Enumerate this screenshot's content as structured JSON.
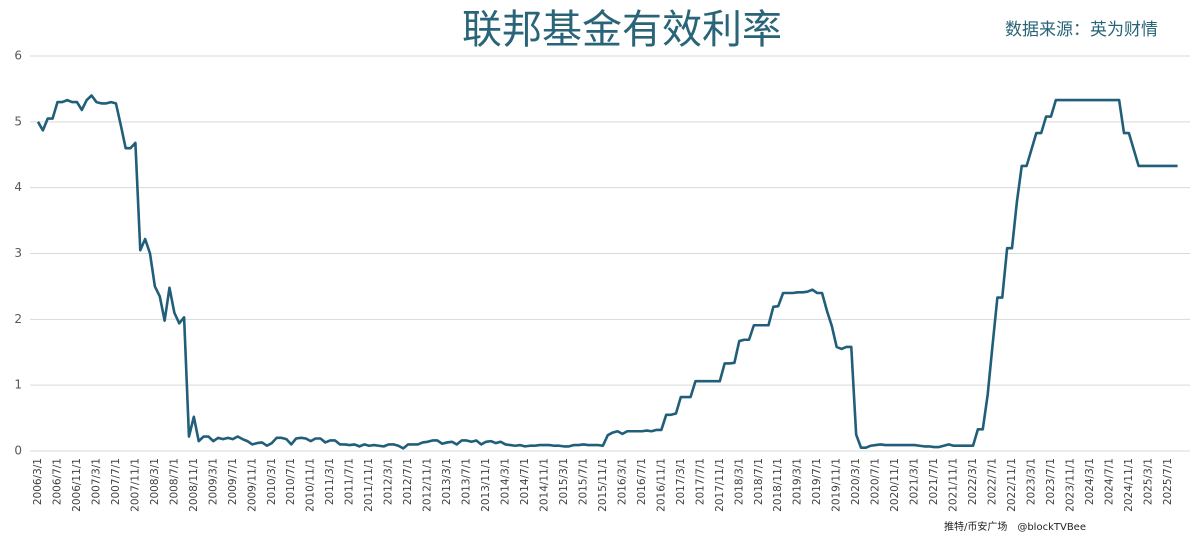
{
  "chart_data": {
    "type": "line",
    "title": "联邦基金有效利率",
    "subtitle": "数据来源：英为财情",
    "watermark": "推特/币安广场　@blockTVBee",
    "color": "#215e79",
    "grid": true,
    "ylim": [
      0,
      6
    ],
    "yticks": [
      0,
      1,
      2,
      3,
      4,
      5,
      6
    ],
    "categories": [
      "2006/3/1",
      null,
      null,
      null,
      "2006/7/1",
      null,
      null,
      null,
      "2006/11/1",
      null,
      null,
      null,
      "2007/3/1",
      null,
      null,
      null,
      "2007/7/1",
      null,
      null,
      null,
      "2007/11/1",
      null,
      null,
      null,
      "2008/3/1",
      null,
      null,
      null,
      "2008/7/1",
      null,
      null,
      null,
      "2008/11/1",
      null,
      null,
      null,
      "2009/3/1",
      null,
      null,
      null,
      "2009/7/1",
      null,
      null,
      null,
      "2009/11/1",
      null,
      null,
      null,
      "2010/3/1",
      null,
      null,
      null,
      "2010/7/1",
      null,
      null,
      null,
      "2010/11/1",
      null,
      null,
      null,
      "2011/3/1",
      null,
      null,
      null,
      "2011/7/1",
      null,
      null,
      null,
      "2011/11/1",
      null,
      null,
      null,
      "2012/3/1",
      null,
      null,
      null,
      "2012/7/1",
      null,
      null,
      null,
      "2012/11/1",
      null,
      null,
      null,
      "2013/3/1",
      null,
      null,
      null,
      "2013/7/1",
      null,
      null,
      null,
      "2013/11/1",
      null,
      null,
      null,
      "2014/3/1",
      null,
      null,
      null,
      "2014/7/1",
      null,
      null,
      null,
      "2014/11/1",
      null,
      null,
      null,
      "2015/3/1",
      null,
      null,
      null,
      "2015/7/1",
      null,
      null,
      null,
      "2015/11/1",
      null,
      null,
      null,
      "2016/3/1",
      null,
      null,
      null,
      "2016/7/1",
      null,
      null,
      null,
      "2016/11/1",
      null,
      null,
      null,
      "2017/3/1",
      null,
      null,
      null,
      "2017/7/1",
      null,
      null,
      null,
      "2017/11/1",
      null,
      null,
      null,
      "2018/3/1",
      null,
      null,
      null,
      "2018/7/1",
      null,
      null,
      null,
      "2018/11/1",
      null,
      null,
      null,
      "2019/3/1",
      null,
      null,
      null,
      "2019/7/1",
      null,
      null,
      null,
      "2019/11/1",
      null,
      null,
      null,
      "2020/3/1",
      null,
      null,
      null,
      "2020/7/1",
      null,
      null,
      null,
      "2020/11/1",
      null,
      null,
      null,
      "2021/3/1",
      null,
      null,
      null,
      "2021/7/1",
      null,
      null,
      null,
      "2021/11/1",
      null,
      null,
      null,
      "2022/3/1",
      null,
      null,
      null,
      "2022/7/1",
      null,
      null,
      null,
      "2022/11/1",
      null,
      null,
      null,
      "2023/3/1",
      null,
      null,
      null,
      "2023/7/1",
      null,
      null,
      null,
      "2023/11/1",
      null,
      null,
      null,
      "2024/3/1",
      null,
      null,
      null,
      "2024/7/1",
      null,
      null,
      null,
      "2024/11/1",
      null,
      null,
      null,
      "2025/3/1",
      null,
      null,
      null,
      "2025/7/1",
      null,
      null
    ],
    "values": [
      5.0,
      4.87,
      5.05,
      5.05,
      5.3,
      5.3,
      5.33,
      5.3,
      5.3,
      5.18,
      5.33,
      5.4,
      5.3,
      5.28,
      5.28,
      5.3,
      5.28,
      4.95,
      4.6,
      4.6,
      4.68,
      3.05,
      3.22,
      3.0,
      2.5,
      2.35,
      1.98,
      2.48,
      2.1,
      1.94,
      2.03,
      0.22,
      0.52,
      0.15,
      0.22,
      0.22,
      0.15,
      0.2,
      0.18,
      0.2,
      0.18,
      0.22,
      0.18,
      0.15,
      0.1,
      0.12,
      0.13,
      0.08,
      0.12,
      0.2,
      0.2,
      0.18,
      0.1,
      0.19,
      0.2,
      0.19,
      0.15,
      0.19,
      0.19,
      0.13,
      0.16,
      0.16,
      0.1,
      0.1,
      0.09,
      0.1,
      0.07,
      0.1,
      0.08,
      0.09,
      0.08,
      0.07,
      0.1,
      0.1,
      0.08,
      0.04,
      0.1,
      0.1,
      0.1,
      0.13,
      0.14,
      0.16,
      0.16,
      0.11,
      0.13,
      0.14,
      0.1,
      0.16,
      0.16,
      0.14,
      0.16,
      0.1,
      0.14,
      0.15,
      0.12,
      0.14,
      0.1,
      0.09,
      0.08,
      0.09,
      0.07,
      0.08,
      0.08,
      0.09,
      0.09,
      0.09,
      0.08,
      0.08,
      0.07,
      0.07,
      0.09,
      0.09,
      0.1,
      0.09,
      0.09,
      0.09,
      0.08,
      0.24,
      0.28,
      0.3,
      0.26,
      0.3,
      0.3,
      0.3,
      0.3,
      0.31,
      0.3,
      0.32,
      0.32,
      0.55,
      0.55,
      0.57,
      0.82,
      0.82,
      0.82,
      1.06,
      1.06,
      1.06,
      1.06,
      1.06,
      1.06,
      1.33,
      1.33,
      1.34,
      1.67,
      1.69,
      1.69,
      1.91,
      1.91,
      1.91,
      1.91,
      2.19,
      2.2,
      2.4,
      2.4,
      2.4,
      2.41,
      2.41,
      2.42,
      2.45,
      2.4,
      2.4,
      2.13,
      1.9,
      1.58,
      1.55,
      1.58,
      1.58,
      0.25,
      0.05,
      0.05,
      0.08,
      0.09,
      0.1,
      0.09,
      0.09,
      0.09,
      0.09,
      0.09,
      0.09,
      0.09,
      0.08,
      0.07,
      0.07,
      0.06,
      0.06,
      0.08,
      0.1,
      0.08,
      0.08,
      0.08,
      0.08,
      0.08,
      0.33,
      0.33,
      0.85,
      1.6,
      2.33,
      2.33,
      3.08,
      3.08,
      3.78,
      4.33,
      4.33,
      4.58,
      4.83,
      4.83,
      5.08,
      5.08,
      5.33,
      5.33,
      5.33,
      5.33,
      5.33,
      5.33,
      5.33,
      5.33,
      5.33,
      5.33,
      5.33,
      5.33,
      5.33,
      5.33,
      4.83,
      4.83,
      4.58,
      4.33,
      4.33,
      4.33,
      4.33,
      4.33,
      4.33,
      4.33,
      4.33,
      4.33
    ]
  }
}
